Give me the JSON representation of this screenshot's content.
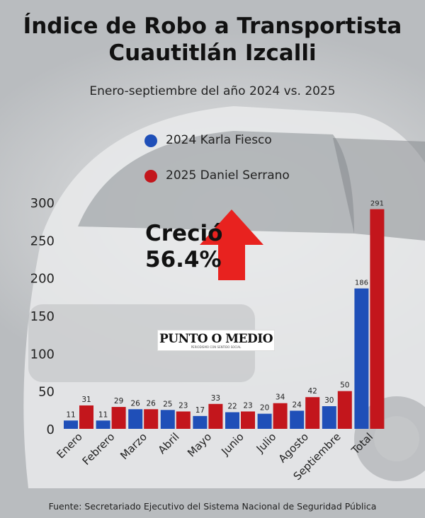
{
  "title_line1": "Índice de Robo a Transportista",
  "title_line2": "Cuautitlán Izcalli",
  "subtitle": "Enero-septiembre del año 2024 vs. 2025",
  "callout": {
    "line1": "Creció",
    "line2": "56.4%"
  },
  "logo": {
    "text": "PUNTO O MEDIO",
    "tagline": "PERIODISMO CON SENTIDO SOCIAL"
  },
  "source": "Fuente: Secretariado Ejecutivo del Sistema Nacional de Seguridad Pública",
  "colors": {
    "series_2024": "#1f4fb8",
    "series_2025": "#c3161c",
    "arrow": "#e8221f"
  },
  "chart_data": {
    "type": "bar",
    "title": "Índice de Robo a Transportista Cuautitlán Izcalli",
    "subtitle": "Enero-septiembre del año 2024 vs. 2025",
    "categories": [
      "Enero",
      "Febrero",
      "Marzo",
      "Abril",
      "Mayo",
      "Junio",
      "Julio",
      "Agosto",
      "Septiembre",
      "Total"
    ],
    "series": [
      {
        "name": "2024 Karla Fiesco",
        "values": [
          11,
          11,
          26,
          25,
          17,
          22,
          20,
          24,
          30,
          186
        ]
      },
      {
        "name": "2025 Daniel Serrano",
        "values": [
          31,
          29,
          26,
          23,
          33,
          23,
          34,
          42,
          50,
          291
        ]
      }
    ],
    "ylim": [
      0,
      300
    ],
    "yticks": [
      0,
      50,
      100,
      150,
      200,
      250,
      300
    ],
    "xlabel": "",
    "ylabel": "",
    "grid": false,
    "legend_position": "top"
  }
}
